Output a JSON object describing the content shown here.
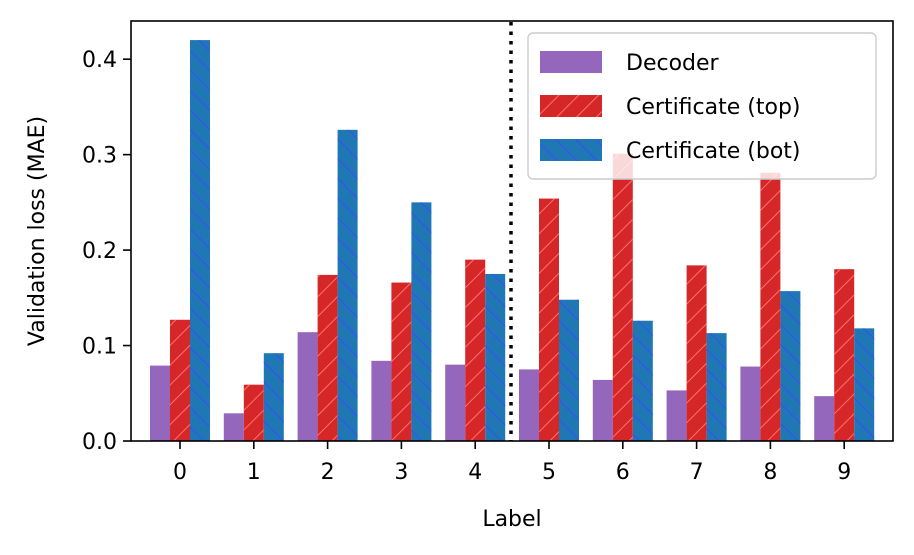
{
  "chart_data": {
    "type": "bar",
    "xlabel": "Label",
    "ylabel": "Validation loss (MAE)",
    "categories": [
      "0",
      "1",
      "2",
      "3",
      "4",
      "5",
      "6",
      "7",
      "8",
      "9"
    ],
    "ylim": [
      0,
      0.44
    ],
    "yticks": [
      "0.0",
      "0.1",
      "0.2",
      "0.3",
      "0.4"
    ],
    "series": [
      {
        "name": "Decoder",
        "color": "#9467bd",
        "hatch": "none",
        "values": [
          0.079,
          0.029,
          0.114,
          0.084,
          0.08,
          0.075,
          0.064,
          0.053,
          0.078,
          0.047
        ]
      },
      {
        "name": "Certificate (top)",
        "color": "#d62728",
        "hatch": "forward-diagonal",
        "values": [
          0.127,
          0.059,
          0.174,
          0.166,
          0.19,
          0.254,
          0.301,
          0.184,
          0.281,
          0.18
        ]
      },
      {
        "name": "Certificate (bot)",
        "color": "#1f77b4",
        "hatch": "backward-diagonal",
        "values": [
          0.42,
          0.092,
          0.326,
          0.25,
          0.175,
          0.148,
          0.126,
          0.113,
          0.157,
          0.118
        ]
      }
    ],
    "divider": "dotted vertical line between labels 4 and 5",
    "legend_position": "top-right",
    "grid": false
  }
}
